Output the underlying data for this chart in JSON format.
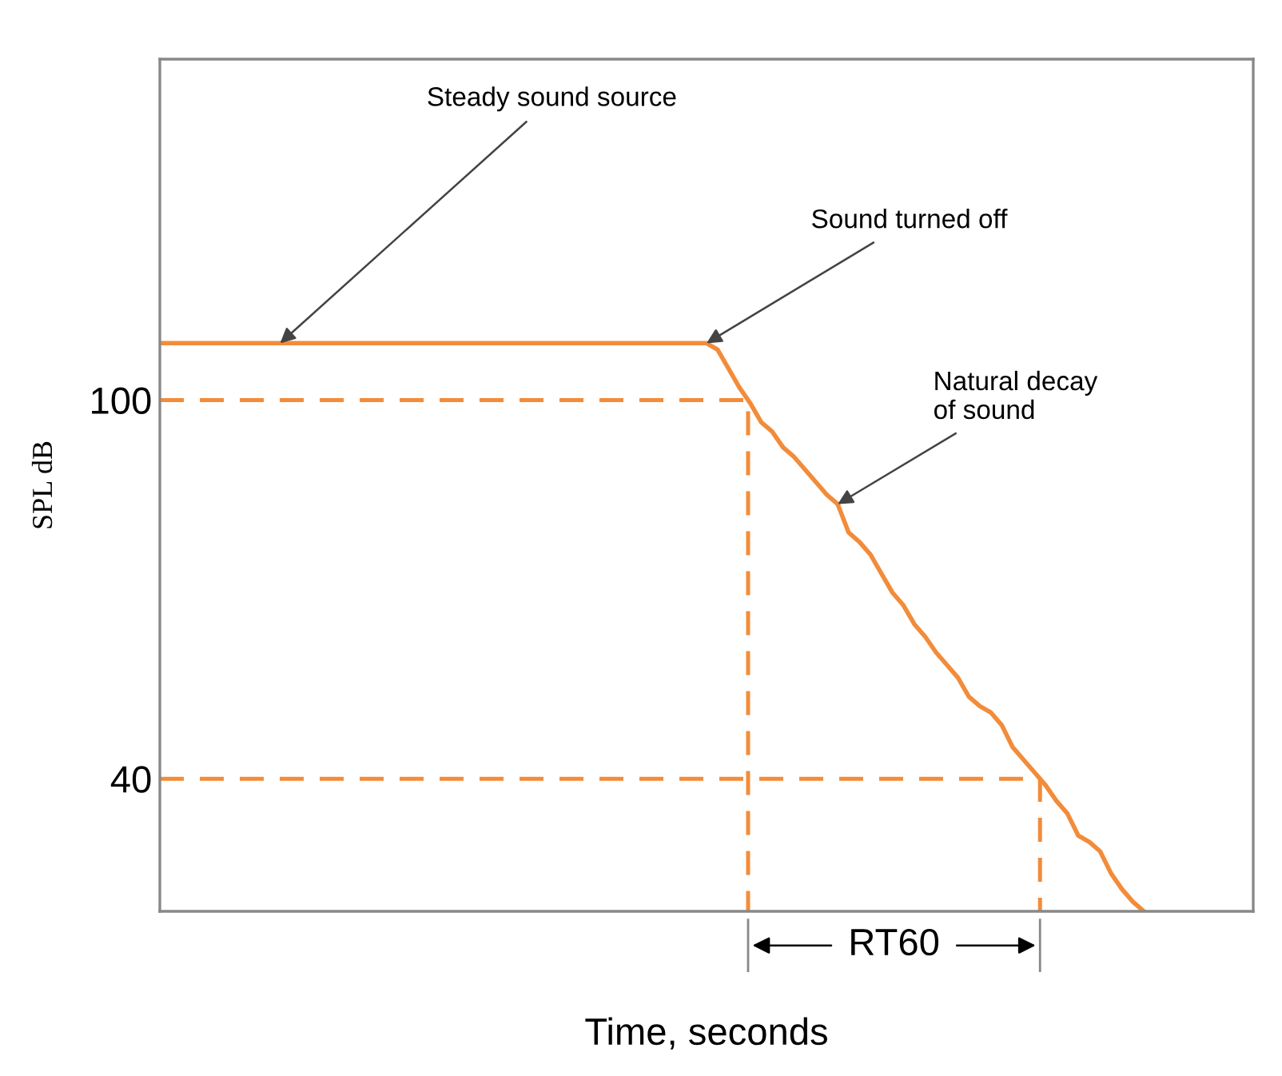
{
  "chart_data": {
    "type": "line",
    "xlabel": "Time, seconds",
    "ylabel": "SPL dB",
    "ylim": [
      19,
      154
    ],
    "yticks": [
      40,
      100
    ],
    "grid": false,
    "legend": false,
    "categories": [
      null,
      null,
      null,
      null,
      null,
      null,
      null,
      null,
      null,
      null,
      null,
      null,
      null,
      null,
      null,
      null,
      null,
      null,
      null,
      null,
      null,
      null,
      null,
      null,
      null,
      null,
      null,
      null,
      null,
      null,
      null,
      null,
      null,
      null,
      null,
      null,
      null,
      null,
      null,
      null,
      null,
      null,
      null,
      null,
      null,
      null,
      null,
      null,
      null,
      null,
      null,
      null,
      null,
      null,
      null,
      null,
      null,
      null,
      null,
      null,
      null,
      null,
      null,
      null,
      null,
      null,
      null,
      null,
      null,
      null,
      null,
      null,
      null,
      null,
      null,
      null,
      null,
      null,
      null,
      null,
      null,
      null,
      null,
      null,
      null,
      null,
      null,
      null,
      null,
      null,
      null,
      null,
      null,
      null,
      null,
      null,
      null,
      null,
      null,
      null,
      null
    ],
    "series": [
      {
        "color": "#f28c3a",
        "line_style": "solid",
        "values": [
          109,
          109,
          109,
          109,
          109,
          109,
          109,
          109,
          109,
          109,
          109,
          109,
          109,
          109,
          109,
          109,
          109,
          109,
          109,
          109,
          109,
          109,
          109,
          109,
          109,
          109,
          109,
          109,
          109,
          109,
          109,
          109,
          109,
          109,
          109,
          109,
          109,
          109,
          109,
          109,
          109,
          109,
          109,
          109,
          109,
          109,
          109,
          109,
          109,
          109,
          109,
          108,
          105,
          102,
          99.5,
          96.5,
          95,
          92.5,
          91,
          89,
          87,
          85,
          83.5,
          79,
          77.5,
          75.5,
          72.5,
          69.5,
          67.5,
          64.5,
          62.5,
          60,
          58,
          56,
          53,
          51.5,
          50.5,
          48.5,
          45,
          43,
          41,
          39,
          36.5,
          34.5,
          31,
          30,
          28.5,
          25,
          22.5,
          20.5,
          19,
          null,
          null,
          null,
          null,
          null,
          null,
          null,
          null,
          null,
          null
        ]
      }
    ],
    "ref_lines": [
      {
        "axis": "y",
        "value": 100,
        "color": "#f28c3a",
        "line_style": "dashed"
      },
      {
        "axis": "y",
        "value": 40,
        "color": "#f28c3a",
        "line_style": "dashed"
      }
    ],
    "annotations": [
      "Steady sound source",
      "Sound turned off",
      "Natural decay\nof sound",
      "RT60"
    ]
  }
}
